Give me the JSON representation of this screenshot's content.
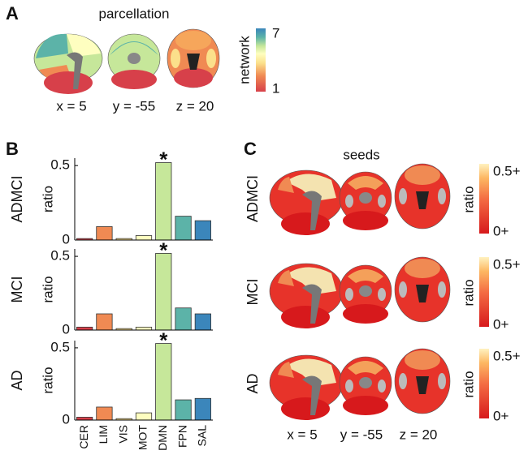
{
  "panel_labels": [
    "A",
    "B",
    "C"
  ],
  "panel_a": {
    "title": "parcellation",
    "colorbar_label": "network",
    "colorbar_top": "7",
    "colorbar_bottom": "1",
    "coords": [
      "x = 5",
      "y = -55",
      "z = 20"
    ]
  },
  "panel_c": {
    "title": "seeds",
    "rows": [
      "ADMCI",
      "MCI",
      "AD"
    ],
    "colorbar_label": "ratio",
    "colorbar_top": "0.5+",
    "colorbar_bottom": "0+",
    "coords": [
      "x = 5",
      "y = -55",
      "z = 20"
    ]
  },
  "chart_data": [
    {
      "type": "bar",
      "title": "ADMCI",
      "y_label": "ratio",
      "values": [
        0.01,
        0.09,
        0.01,
        0.03,
        0.52,
        0.16,
        0.13
      ],
      "colors": [
        "#d7404a",
        "#f08a53",
        "#fbe08b",
        "#fefec0",
        "#c6e79a",
        "#5cb3a8",
        "#3b86bb"
      ],
      "ylim": [
        0,
        0.55
      ],
      "yticks": [
        0,
        0.5
      ],
      "annotations": [
        {
          "category": "DMN",
          "text": "*"
        }
      ]
    },
    {
      "type": "bar",
      "title": "MCI",
      "y_label": "ratio",
      "values": [
        0.02,
        0.11,
        0.01,
        0.02,
        0.52,
        0.15,
        0.11
      ],
      "colors": [
        "#d7404a",
        "#f08a53",
        "#fbe08b",
        "#fefec0",
        "#c6e79a",
        "#5cb3a8",
        "#3b86bb"
      ],
      "ylim": [
        0,
        0.55
      ],
      "yticks": [
        0,
        0.5
      ],
      "annotations": [
        {
          "category": "DMN",
          "text": "*"
        }
      ]
    },
    {
      "type": "bar",
      "title": "AD",
      "y_label": "ratio",
      "categories": [
        "CER",
        "LIM",
        "VIS",
        "MOT",
        "DMN",
        "FPN",
        "SAL"
      ],
      "values": [
        0.02,
        0.09,
        0.01,
        0.05,
        0.53,
        0.14,
        0.15
      ],
      "colors": [
        "#d7404a",
        "#f08a53",
        "#fbe08b",
        "#fefec0",
        "#c6e79a",
        "#5cb3a8",
        "#3b86bb"
      ],
      "ylim": [
        0,
        0.55
      ],
      "yticks": [
        0,
        0.5
      ],
      "annotations": [
        {
          "category": "DMN",
          "text": "*"
        }
      ]
    }
  ]
}
